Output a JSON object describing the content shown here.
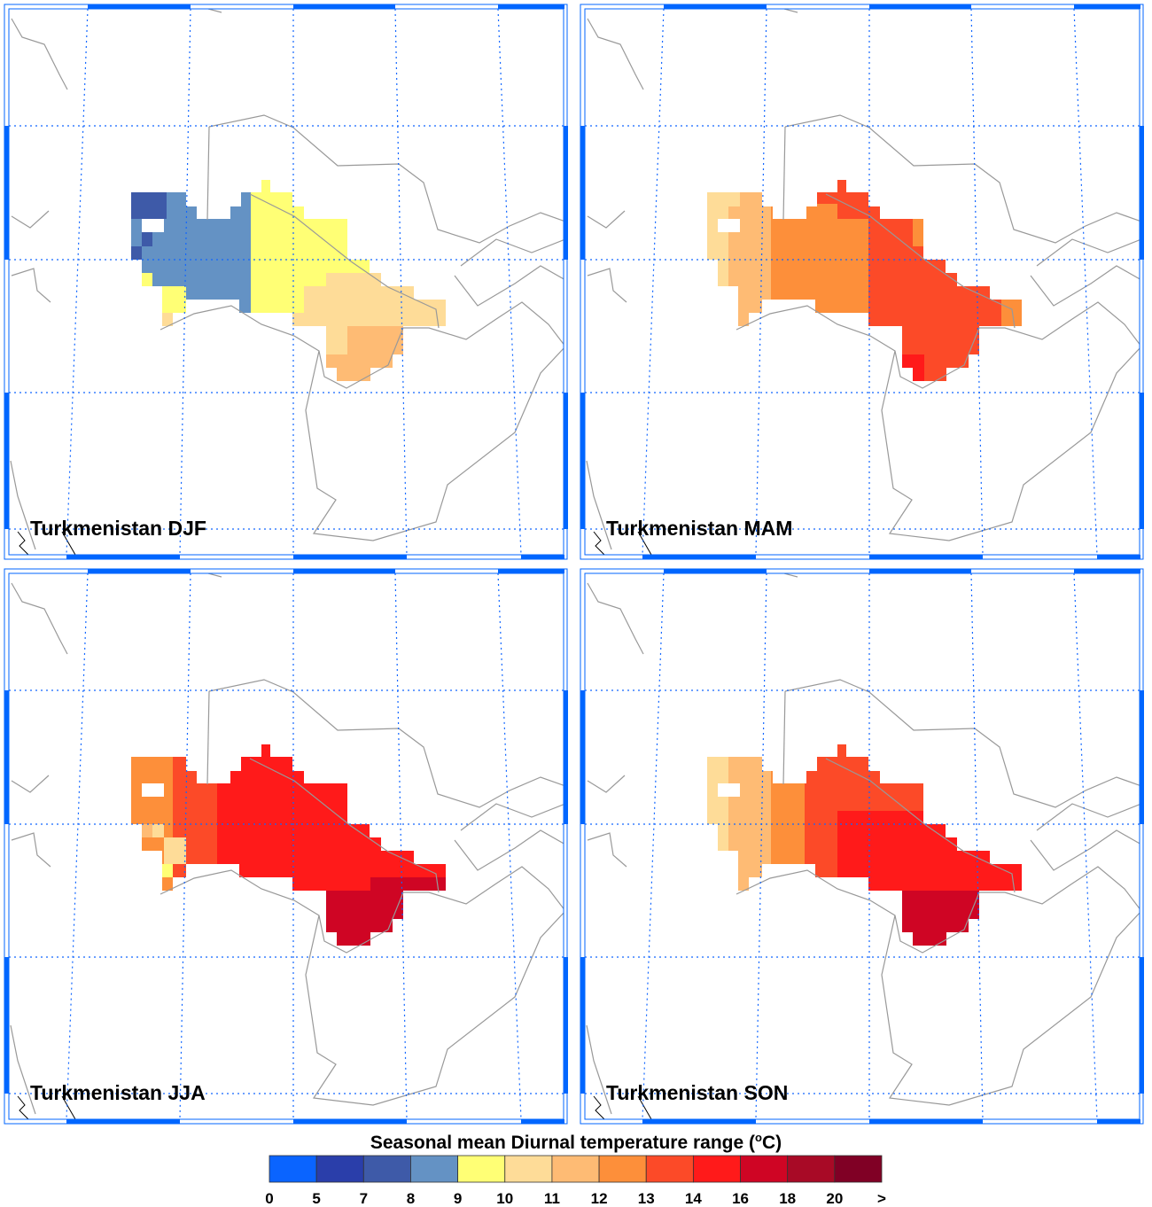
{
  "chart_data": {
    "type": "heatmap",
    "title": "Seasonal mean Diurnal temperature range (°C)",
    "title_text": "Seasonal mean Diurnal temperature range (",
    "title_unit_sup": "o",
    "title_unit_end": "C)",
    "panels": [
      {
        "title": "Turkmenistan DJF",
        "season": "DJF"
      },
      {
        "title": "Turkmenistan MAM",
        "season": "MAM"
      },
      {
        "title": "Turkmenistan JJA",
        "season": "JJA"
      },
      {
        "title": "Turkmenistan SON",
        "season": "SON"
      }
    ],
    "colorbar": {
      "tick_labels": [
        "0",
        "5",
        "7",
        "8",
        "9",
        "10",
        "11",
        "12",
        "13",
        "14",
        "16",
        "18",
        "20",
        ">"
      ],
      "colors": [
        "#0A64FF",
        "#2A3EAA",
        "#3E5AA8",
        "#6492C4",
        "#FFFF75",
        "#FEDC98",
        "#FEBB74",
        "#FD8F3A",
        "#FC4A28",
        "#FF1A1A",
        "#CF0524",
        "#A80A26",
        "#800025"
      ]
    },
    "map_colors": {
      "border": "#999999",
      "grid": "#1166FF",
      "frame": "#0066FF"
    }
  }
}
